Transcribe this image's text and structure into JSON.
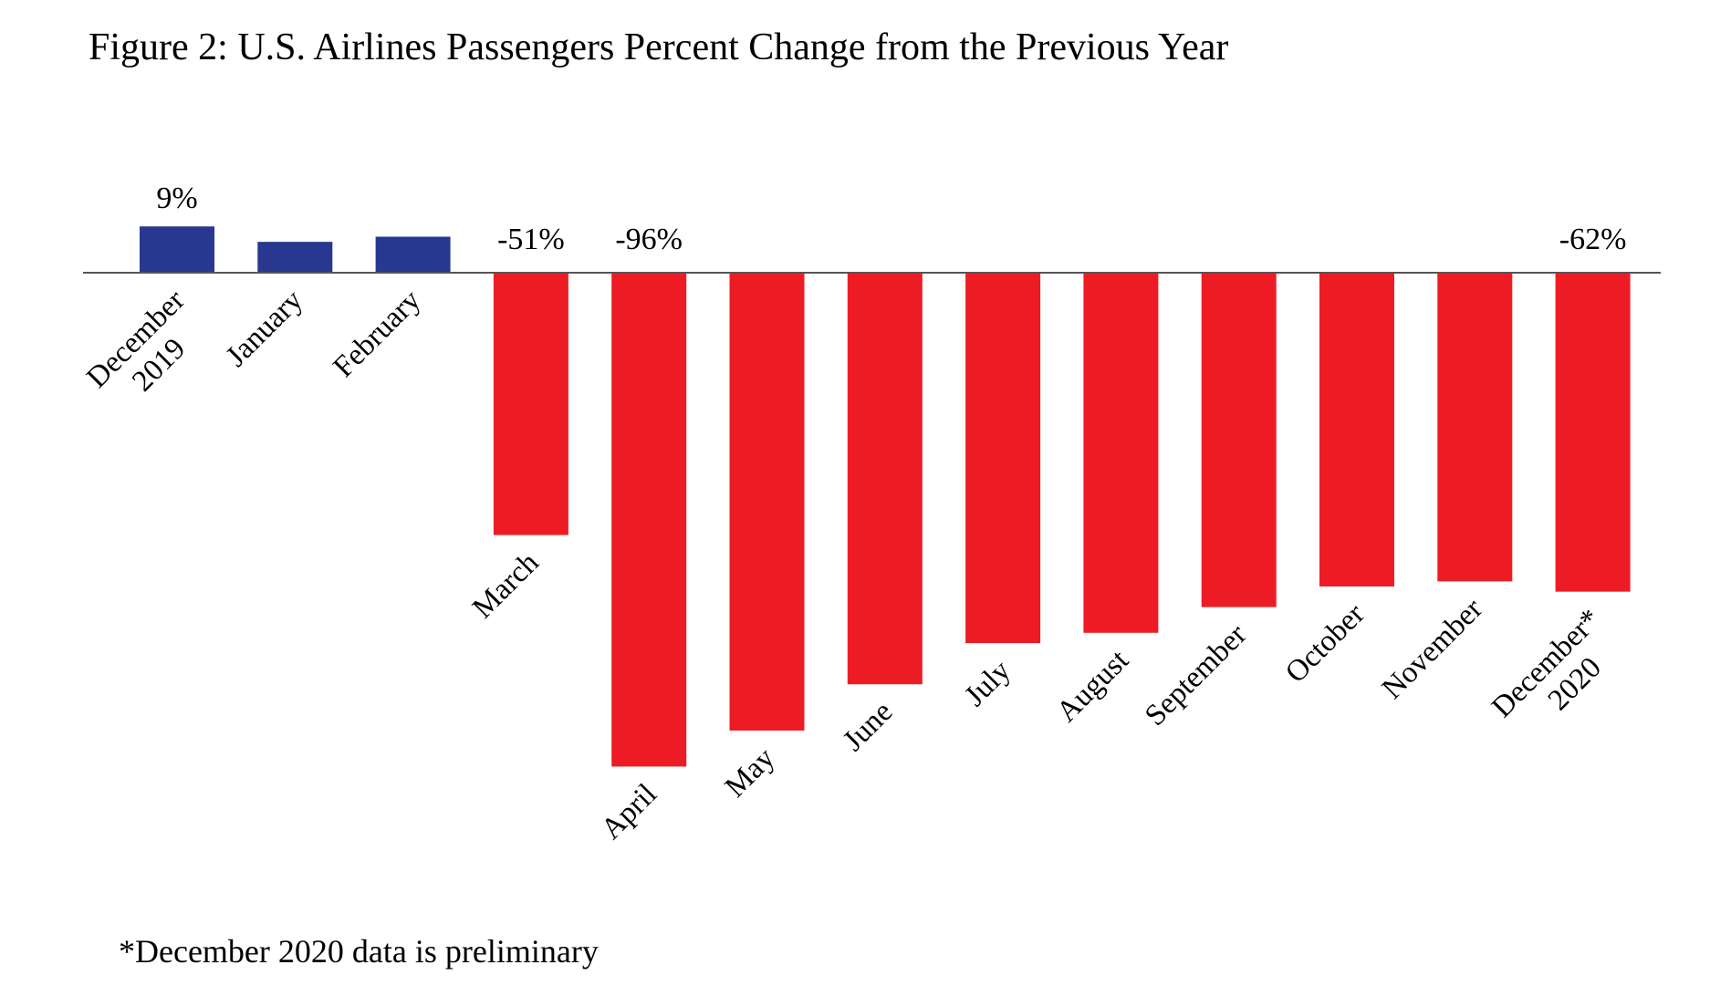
{
  "chart_data": {
    "type": "bar",
    "title": "Figure 2: U.S. Airlines Passengers Percent Change from the Previous Year",
    "xlabel": "",
    "ylabel": "",
    "categories": [
      [
        "December",
        "2019"
      ],
      [
        "January"
      ],
      [
        "February"
      ],
      [
        "March"
      ],
      [
        "April"
      ],
      [
        "May"
      ],
      [
        "June"
      ],
      [
        "July"
      ],
      [
        "August"
      ],
      [
        "September"
      ],
      [
        "October"
      ],
      [
        "November"
      ],
      [
        "December*",
        "2020"
      ]
    ],
    "values": [
      9,
      6,
      7,
      -51,
      -96,
      -89,
      -80,
      -72,
      -70,
      -65,
      -61,
      -60,
      -62
    ],
    "data_labels": [
      "9%",
      "",
      "",
      "-51%",
      "-96%",
      "",
      "",
      "",
      "",
      "",
      "",
      "",
      "-62%"
    ],
    "ylim": [
      -96,
      9
    ],
    "grid": false,
    "axis_visible": false,
    "colors": {
      "positive": "#283891",
      "negative": "#ed1c24",
      "axis": "#555555"
    },
    "footnote": "*December 2020 data is preliminary"
  }
}
